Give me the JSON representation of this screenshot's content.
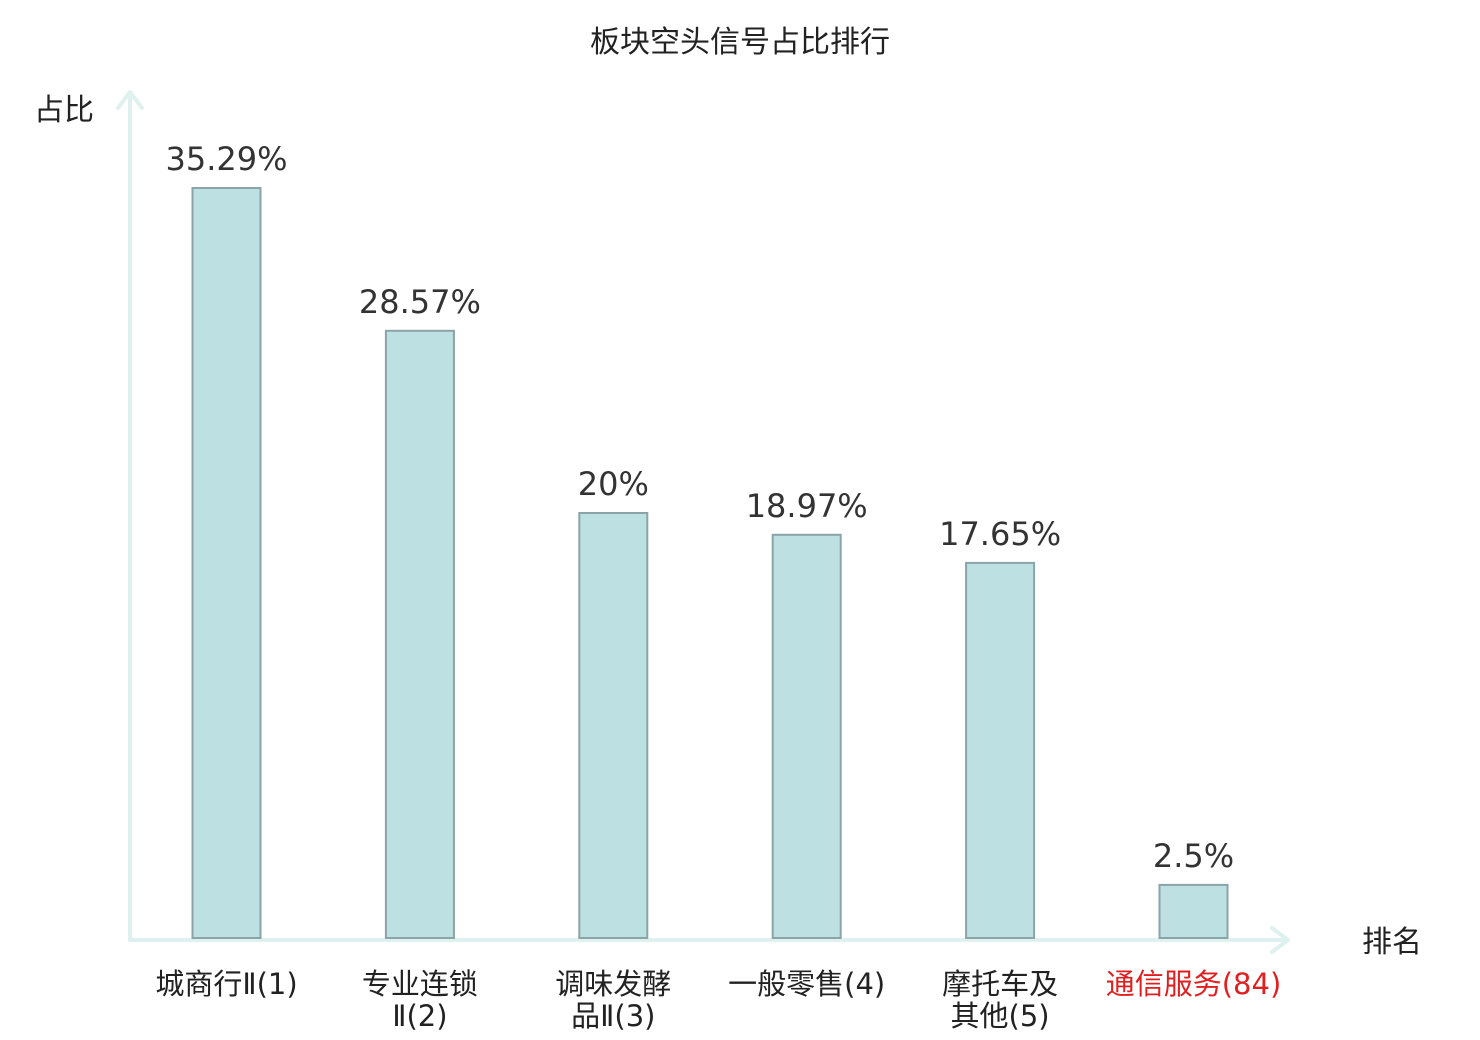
{
  "chart_data": {
    "type": "bar",
    "title": "板块空头信号占比排行",
    "ylabel": "占比",
    "xlabel": "排名",
    "categories": [
      [
        "城商行Ⅱ(1)"
      ],
      [
        "专业连锁",
        "Ⅱ(2)"
      ],
      [
        "调味发酵",
        "品Ⅱ(3)"
      ],
      [
        "一般零售(4)"
      ],
      [
        "摩托车及",
        "其他(5)"
      ],
      [
        "通信服务(84)"
      ]
    ],
    "values": [
      35.29,
      28.57,
      20,
      18.97,
      17.65,
      2.5
    ],
    "value_labels": [
      "35.29%",
      "28.57%",
      "20%",
      "18.97%",
      "17.65%",
      "2.5%"
    ],
    "highlight_index": 5,
    "ylim": [
      0,
      40
    ],
    "grid": false,
    "colors": {
      "bar_fill": "#bde0e2",
      "bar_stroke": "#8aa4a8",
      "axis": "#dff1ee",
      "highlight_text": "#e02020"
    }
  }
}
